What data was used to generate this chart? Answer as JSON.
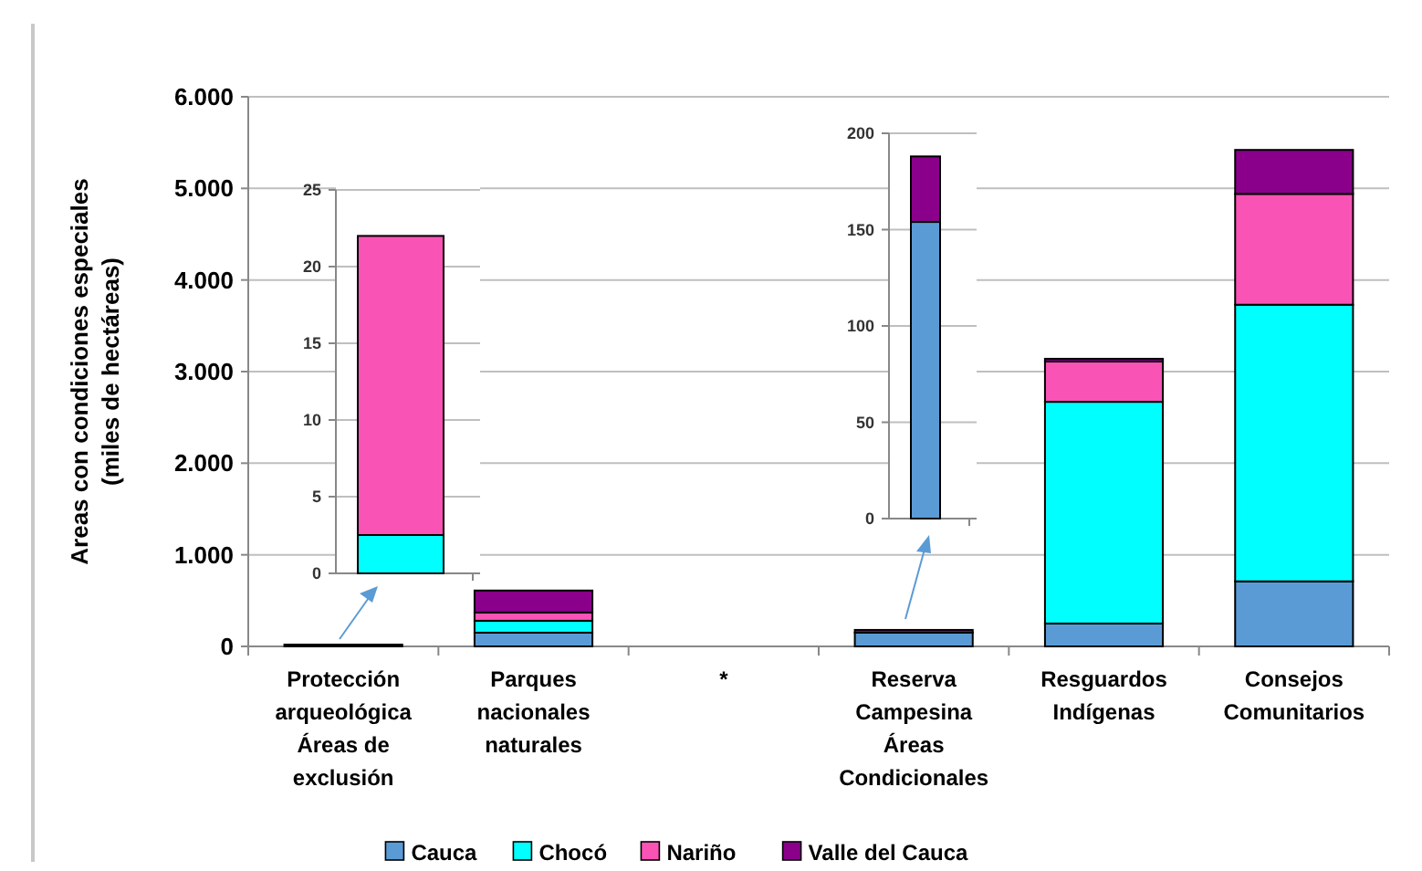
{
  "chart_data": [
    {
      "type": "bar",
      "stacked": true,
      "ylabel": "Areas con condiciones especiales\n(miles de hectáreas)",
      "categories": [
        "Protección arqueológica Áreas de exclusión",
        "Parques nacionales naturales",
        "*",
        "Reserva Campesina Áreas Condicionales",
        "Resguardos Indígenas",
        "Consejos Comunitarios"
      ],
      "series": [
        {
          "name": "Cauca",
          "color": "#5b9bd5",
          "values": [
            0,
            150,
            0,
            150,
            250,
            710
          ]
        },
        {
          "name": "Chocó",
          "color": "#00ffff",
          "values": [
            null,
            130,
            0,
            0,
            2420,
            3020
          ]
        },
        {
          "name": "Nariño",
          "color": "#f953b6",
          "values": [
            20,
            90,
            0,
            0,
            440,
            1210
          ]
        },
        {
          "name": "Valle del Cauca",
          "color": "#8b008b",
          "values": [
            0,
            240,
            0,
            30,
            30,
            480
          ]
        }
      ],
      "ylim": [
        0,
        6000
      ],
      "yticks": [
        0,
        {
          "value": 1000,
          "label": "1.000"
        },
        {
          "value": 2000,
          "label": "2.000"
        },
        {
          "value": 3000,
          "label": "3.000"
        },
        {
          "value": 4000,
          "label": "4.000"
        },
        {
          "value": 5000,
          "label": "5.000"
        },
        {
          "value": 6000,
          "label": "6.000"
        }
      ],
      "grid": "y",
      "legend": "bottom"
    },
    {
      "type": "bar",
      "stacked": true,
      "categories": [
        null
      ],
      "series": [
        {
          "color": "#00ffff",
          "values": [
            2.5
          ]
        },
        {
          "color": "#f953b6",
          "values": [
            19.5
          ]
        }
      ],
      "ylim": [
        0,
        25
      ],
      "yticks": [
        0,
        5,
        10,
        15,
        20,
        25
      ],
      "grid": "y"
    },
    {
      "type": "bar",
      "stacked": true,
      "categories": [
        null
      ],
      "series": [
        {
          "color": "#5b9bd5",
          "values": [
            154
          ]
        },
        {
          "color": "#8b008b",
          "values": [
            34
          ]
        }
      ],
      "ylim": [
        0,
        200
      ],
      "yticks": [
        0,
        50,
        100,
        150,
        200
      ],
      "grid": "y"
    }
  ]
}
